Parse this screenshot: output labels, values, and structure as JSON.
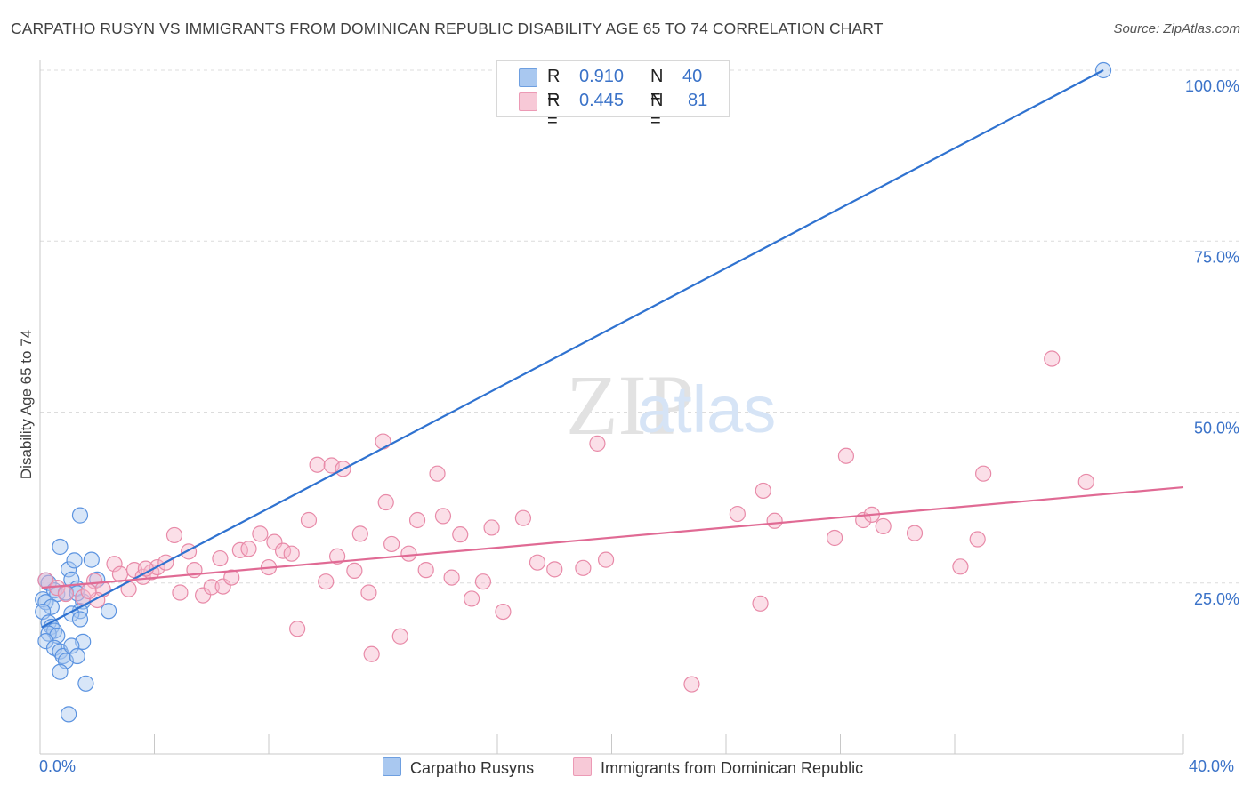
{
  "title": "CARPATHO RUSYN VS IMMIGRANTS FROM DOMINICAN REPUBLIC DISABILITY AGE 65 TO 74 CORRELATION CHART",
  "source": "Source: ZipAtlas.com",
  "watermark": {
    "zip": "ZIP",
    "atlas": "atlas"
  },
  "legend_top": {
    "rows": [
      {
        "r_label": "R =",
        "r_value": "0.910",
        "n_label": "N =",
        "n_value": "40",
        "color": "#a9c8f0"
      },
      {
        "r_label": "R =",
        "r_value": "0.445",
        "n_label": "N =",
        "n_value": "81",
        "color": "#f7b7cb"
      }
    ]
  },
  "legend_bottom": {
    "items": [
      {
        "label": "Carpatho Rusyns",
        "color": "#a9c8f0"
      },
      {
        "label": "Immigrants from Dominican Republic",
        "color": "#f7b7cb"
      }
    ]
  },
  "x_axis": {
    "min_label": "0.0%",
    "max_label": "40.0%"
  },
  "chart_data": {
    "type": "scatter",
    "title": "CARPATHO RUSYN VS IMMIGRANTS FROM DOMINICAN REPUBLIC DISABILITY AGE 65 TO 74 CORRELATION CHART",
    "xlabel": "",
    "ylabel": "Disability Age 65 to 74",
    "xlim": [
      0,
      40
    ],
    "ylim": [
      0,
      102
    ],
    "y_ticks": [
      {
        "value": 25,
        "label": "25.0%"
      },
      {
        "value": 50,
        "label": "50.0%"
      },
      {
        "value": 75,
        "label": "75.0%"
      },
      {
        "value": 100,
        "label": "100.0%"
      }
    ],
    "grid": "horizontal dashed",
    "series": [
      {
        "name": "Carpatho Rusyns",
        "color": "#5b93e0",
        "fill": "#a9c8f0",
        "trend": {
          "x": [
            0.05,
            10.5
          ],
          "y": [
            18.5,
            37.0
          ],
          "color": "#2f72d0"
        },
        "trend_full": {
          "x": [
            0.05,
            37.2
          ],
          "y": [
            18.5,
            100.0
          ]
        },
        "points": [
          [
            0.2,
            25.4
          ],
          [
            0.3,
            25.0
          ],
          [
            0.5,
            23.9
          ],
          [
            0.6,
            23.4
          ],
          [
            0.1,
            22.6
          ],
          [
            0.2,
            22.2
          ],
          [
            0.4,
            21.5
          ],
          [
            0.1,
            20.8
          ],
          [
            0.3,
            19.2
          ],
          [
            0.4,
            18.6
          ],
          [
            0.5,
            18.0
          ],
          [
            0.3,
            17.6
          ],
          [
            0.6,
            17.3
          ],
          [
            0.2,
            16.5
          ],
          [
            0.5,
            15.5
          ],
          [
            0.7,
            15.0
          ],
          [
            0.8,
            14.3
          ],
          [
            0.9,
            13.6
          ],
          [
            0.7,
            12.0
          ],
          [
            1.0,
            27.0
          ],
          [
            0.7,
            30.3
          ],
          [
            1.1,
            25.5
          ],
          [
            1.3,
            24.2
          ],
          [
            1.5,
            22.3
          ],
          [
            0.9,
            23.6
          ],
          [
            1.4,
            20.9
          ],
          [
            1.1,
            20.5
          ],
          [
            1.4,
            19.7
          ],
          [
            1.3,
            23.5
          ],
          [
            1.5,
            16.4
          ],
          [
            1.1,
            15.8
          ],
          [
            1.3,
            14.3
          ],
          [
            1.6,
            10.3
          ],
          [
            1.0,
            5.8
          ],
          [
            1.4,
            34.9
          ],
          [
            1.8,
            28.4
          ],
          [
            2.0,
            25.5
          ],
          [
            2.4,
            20.9
          ],
          [
            1.2,
            28.3
          ],
          [
            37.2,
            100.0
          ]
        ]
      },
      {
        "name": "Immigrants from Dominican Republic",
        "color": "#e88aa8",
        "fill": "#f7b7cb",
        "trend": {
          "x": [
            0.05,
            40.0
          ],
          "y": [
            24.3,
            39.0
          ],
          "color": "#e06a94"
        },
        "points": [
          [
            0.2,
            25.4
          ],
          [
            0.6,
            24.3
          ],
          [
            0.9,
            23.4
          ],
          [
            1.5,
            22.9
          ],
          [
            1.9,
            25.3
          ],
          [
            2.2,
            24.1
          ],
          [
            2.0,
            22.5
          ],
          [
            2.6,
            27.8
          ],
          [
            2.8,
            26.3
          ],
          [
            3.1,
            24.1
          ],
          [
            3.3,
            26.9
          ],
          [
            3.6,
            25.9
          ],
          [
            3.9,
            26.6
          ],
          [
            4.1,
            27.3
          ],
          [
            4.4,
            28.0
          ],
          [
            4.7,
            32.0
          ],
          [
            4.9,
            23.6
          ],
          [
            5.2,
            29.6
          ],
          [
            5.4,
            26.9
          ],
          [
            5.7,
            23.2
          ],
          [
            6.0,
            24.4
          ],
          [
            6.3,
            28.6
          ],
          [
            6.4,
            24.5
          ],
          [
            6.7,
            25.8
          ],
          [
            7.0,
            29.8
          ],
          [
            7.3,
            30.0
          ],
          [
            7.7,
            32.2
          ],
          [
            8.0,
            27.3
          ],
          [
            8.2,
            31.0
          ],
          [
            8.5,
            29.7
          ],
          [
            8.8,
            29.3
          ],
          [
            9.0,
            18.3
          ],
          [
            9.4,
            34.2
          ],
          [
            9.7,
            42.3
          ],
          [
            10.2,
            42.2
          ],
          [
            10.6,
            41.7
          ],
          [
            10.0,
            25.2
          ],
          [
            10.4,
            28.9
          ],
          [
            11.0,
            26.8
          ],
          [
            11.2,
            32.2
          ],
          [
            11.5,
            23.6
          ],
          [
            11.6,
            14.6
          ],
          [
            12.0,
            45.7
          ],
          [
            12.1,
            36.8
          ],
          [
            12.3,
            30.7
          ],
          [
            12.6,
            17.2
          ],
          [
            12.9,
            29.3
          ],
          [
            13.2,
            34.2
          ],
          [
            13.5,
            26.9
          ],
          [
            13.9,
            41.0
          ],
          [
            14.1,
            34.8
          ],
          [
            14.4,
            25.8
          ],
          [
            14.7,
            32.1
          ],
          [
            15.1,
            22.7
          ],
          [
            15.5,
            25.2
          ],
          [
            15.8,
            33.1
          ],
          [
            16.2,
            20.8
          ],
          [
            16.9,
            34.5
          ],
          [
            17.4,
            28.0
          ],
          [
            18.0,
            27.0
          ],
          [
            19.0,
            27.2
          ],
          [
            19.5,
            45.4
          ],
          [
            19.8,
            28.4
          ],
          [
            22.8,
            10.2
          ],
          [
            24.4,
            35.1
          ],
          [
            25.3,
            38.5
          ],
          [
            25.2,
            22.0
          ],
          [
            25.7,
            34.1
          ],
          [
            27.8,
            31.6
          ],
          [
            28.2,
            43.6
          ],
          [
            28.8,
            34.2
          ],
          [
            29.1,
            35.0
          ],
          [
            29.5,
            33.3
          ],
          [
            30.6,
            32.3
          ],
          [
            32.2,
            27.4
          ],
          [
            32.8,
            31.4
          ],
          [
            33.0,
            41.0
          ],
          [
            35.4,
            57.8
          ],
          [
            36.6,
            39.8
          ],
          [
            3.7,
            27.1
          ],
          [
            1.7,
            23.8
          ]
        ]
      }
    ]
  }
}
